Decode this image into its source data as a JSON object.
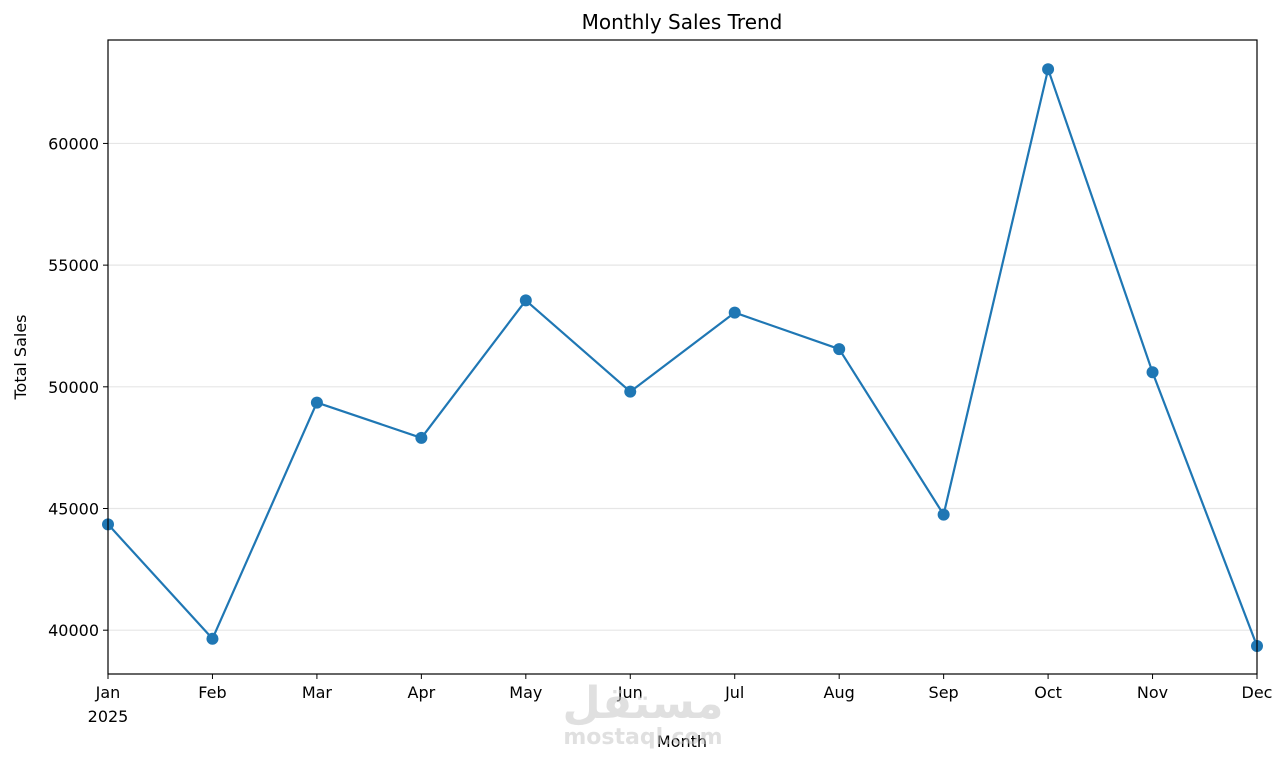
{
  "chart_data": {
    "type": "line",
    "title": "Monthly Sales Trend",
    "xlabel": "Month",
    "ylabel": "Total Sales",
    "x": [
      "Jan",
      "Feb",
      "Mar",
      "Apr",
      "May",
      "Jun",
      "Jul",
      "Aug",
      "Sep",
      "Oct",
      "Nov",
      "Dec"
    ],
    "x_year_label": "2025",
    "series": [
      {
        "values": [
          44350,
          39650,
          49350,
          47900,
          53550,
          49800,
          53050,
          51550,
          44750,
          63050,
          50600,
          39350
        ],
        "color": "#1f77b4",
        "marker": "circle"
      }
    ],
    "yticks": [
      40000,
      45000,
      50000,
      55000,
      60000
    ],
    "ylim": [
      38200,
      64250
    ],
    "grid": "horizontal",
    "legend": "none"
  },
  "watermark": {
    "arabic": "مستقل",
    "latin": "mostaql.com"
  }
}
